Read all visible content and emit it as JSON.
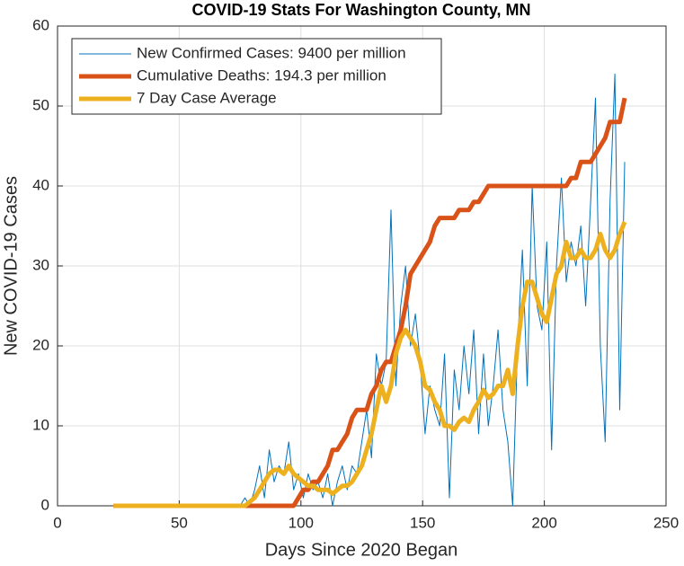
{
  "chart_data": {
    "type": "line",
    "title": "COVID-19 Stats For Washington County, MN",
    "x_label": "Days Since 2020 Began",
    "y_label": "New COVID-19 Cases",
    "xlim": [
      0,
      250
    ],
    "xticks": [
      0,
      50,
      100,
      150,
      200,
      250
    ],
    "ylim": [
      0,
      60
    ],
    "yticks": [
      0,
      10,
      20,
      30,
      40,
      50,
      60
    ],
    "grid": true,
    "legend": "top-left",
    "x": [
      23,
      25,
      27,
      29,
      31,
      33,
      35,
      37,
      39,
      41,
      43,
      45,
      47,
      49,
      51,
      53,
      55,
      57,
      59,
      61,
      63,
      65,
      67,
      69,
      71,
      73,
      75,
      77,
      79,
      81,
      83,
      85,
      87,
      89,
      91,
      93,
      95,
      97,
      99,
      101,
      103,
      105,
      107,
      109,
      111,
      113,
      115,
      117,
      119,
      121,
      123,
      125,
      127,
      129,
      131,
      133,
      135,
      137,
      139,
      141,
      143,
      145,
      147,
      149,
      151,
      153,
      155,
      157,
      159,
      161,
      163,
      165,
      167,
      169,
      171,
      173,
      175,
      177,
      179,
      181,
      183,
      185,
      187,
      189,
      191,
      193,
      195,
      197,
      199,
      201,
      203,
      205,
      207,
      209,
      211,
      213,
      215,
      217,
      219,
      221,
      223,
      225,
      227,
      229,
      231,
      233
    ],
    "series": [
      {
        "name": "New Confirmed Cases: 9400 per million",
        "color": "#0072BD",
        "values": [
          0,
          0,
          0,
          0,
          0,
          0,
          0,
          0,
          0,
          0,
          0,
          0,
          0,
          0,
          0,
          0,
          0,
          0,
          0,
          0,
          0,
          0,
          0,
          0,
          0,
          0,
          0,
          1,
          0,
          2,
          5,
          1,
          7,
          3,
          5,
          4,
          8,
          2,
          4,
          1,
          4,
          2,
          3,
          1,
          4,
          0,
          3,
          5,
          2,
          5,
          4,
          8,
          12,
          6,
          19,
          15,
          18,
          37,
          15,
          25,
          30,
          20,
          24,
          18,
          9,
          15,
          12,
          10,
          19,
          1,
          17,
          12,
          20,
          14,
          22,
          9,
          19,
          10,
          15,
          22,
          12,
          8,
          0,
          20,
          32,
          15,
          40,
          25,
          22,
          33,
          7,
          30,
          41,
          28,
          33,
          30,
          35,
          25,
          38,
          51,
          20,
          8,
          38,
          54,
          12,
          43
        ]
      },
      {
        "name": "Cumulative Deaths: 194.3 per million",
        "color": "#D95319",
        "values": [
          0,
          0,
          0,
          0,
          0,
          0,
          0,
          0,
          0,
          0,
          0,
          0,
          0,
          0,
          0,
          0,
          0,
          0,
          0,
          0,
          0,
          0,
          0,
          0,
          0,
          0,
          0,
          0,
          0,
          0,
          0,
          0,
          0,
          0,
          0,
          0,
          0,
          0,
          1,
          2,
          2,
          3,
          3,
          4,
          5,
          7,
          7,
          8,
          9,
          11,
          12,
          12,
          12,
          14,
          15,
          17,
          18,
          18,
          20,
          22,
          25,
          29,
          30,
          31,
          32,
          33,
          35,
          36,
          36,
          36,
          36,
          37,
          37,
          37,
          38,
          38,
          39,
          40,
          40,
          40,
          40,
          40,
          40,
          40,
          40,
          40,
          40,
          40,
          40,
          40,
          40,
          40,
          40,
          40,
          41,
          41,
          43,
          43,
          43,
          44,
          45,
          46,
          48,
          48,
          48,
          51
        ]
      },
      {
        "name": "7 Day Case Average",
        "color": "#EDB120",
        "values": [
          0,
          0,
          0,
          0,
          0,
          0,
          0,
          0,
          0,
          0,
          0,
          0,
          0,
          0,
          0,
          0,
          0,
          0,
          0,
          0,
          0,
          0,
          0,
          0,
          0,
          0,
          0,
          0,
          0.5,
          1,
          2,
          3,
          4,
          4.5,
          4.5,
          4,
          5,
          4,
          3.5,
          3,
          2.5,
          2.5,
          2,
          2,
          2,
          1.5,
          2,
          2.5,
          2.5,
          3,
          4,
          5,
          7,
          9,
          12,
          15,
          13,
          15,
          19,
          21,
          22,
          21,
          20,
          18,
          15,
          14.5,
          13,
          12,
          10,
          10,
          9.5,
          10.5,
          11,
          10.5,
          12,
          13,
          14.5,
          13.5,
          14,
          15,
          15,
          17,
          14,
          20,
          25,
          28,
          28,
          26,
          24,
          23,
          26,
          29,
          30,
          33,
          31,
          31,
          32,
          31,
          31,
          32,
          34,
          32,
          31,
          32,
          34,
          35.5
        ]
      }
    ]
  }
}
